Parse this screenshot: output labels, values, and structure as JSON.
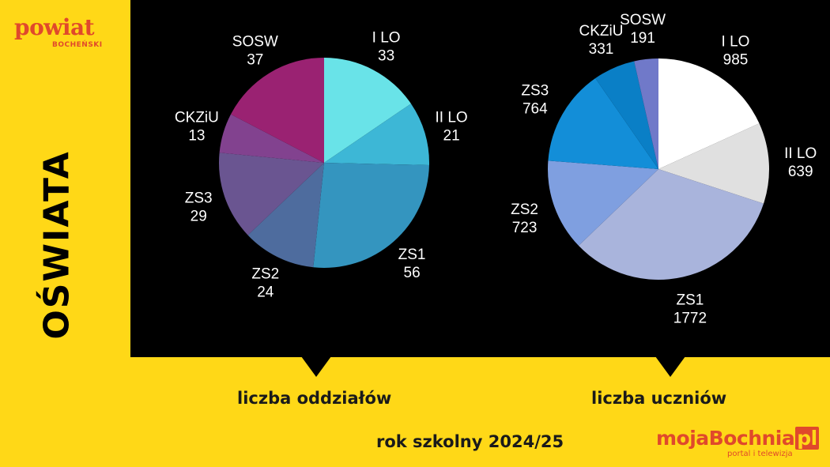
{
  "side_title": "OŚWIATA",
  "logo": {
    "main": "powiat",
    "sub": "BOCHEŃSKI"
  },
  "captions": {
    "left": "liczba oddziałów",
    "right": "liczba uczniów",
    "year": "rok szkolny 2024/25"
  },
  "brand": {
    "main": "mojaBochnia",
    "suffix": "pl",
    "sub": "portal i telewizja"
  },
  "chart_data": [
    {
      "type": "pie",
      "title": "liczba oddziałów",
      "categories": [
        "I LO",
        "II LO",
        "ZS1",
        "ZS2",
        "ZS3",
        "CKZiU",
        "SOSW"
      ],
      "values": [
        33,
        21,
        56,
        24,
        29,
        13,
        37
      ],
      "colors": [
        "#69E3E8",
        "#3DB7D6",
        "#3495BF",
        "#4E6C9E",
        "#6A5591",
        "#82428F",
        "#9A2272"
      ]
    },
    {
      "type": "pie",
      "title": "liczba uczniów",
      "categories": [
        "I LO",
        "II LO",
        "ZS1",
        "ZS2",
        "ZS3",
        "CKZiU",
        "SOSW"
      ],
      "values": [
        985,
        639,
        1772,
        723,
        764,
        331,
        191
      ],
      "colors": [
        "#FFFFFF",
        "#E0E0E0",
        "#A9B4DC",
        "#7F9FE0",
        "#138ED8",
        "#0A7FC6",
        "#7079C9"
      ]
    }
  ]
}
